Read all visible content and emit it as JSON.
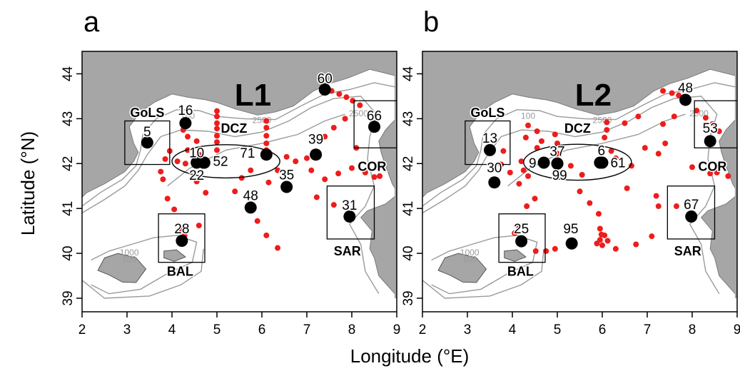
{
  "chart_data": {
    "type": "scatter",
    "xlabel": "Longitude (°E)",
    "ylabel": "Latitude (°N)",
    "xlim": [
      2,
      9
    ],
    "ylim": [
      39,
      44.5
    ],
    "xticks": [
      "2",
      "3",
      "4",
      "5",
      "6",
      "7",
      "8",
      "9"
    ],
    "yticks": [
      "39",
      "40",
      "41",
      "42",
      "43",
      "44"
    ],
    "contour_labels": [
      "100",
      "1000",
      "2500"
    ],
    "colors": {
      "land": "#a6a6a6",
      "sea": "#ffffff",
      "contour": "#9a9a9a",
      "coast": "#7a7a7a",
      "track": "#ee1c1c",
      "station": "#000000"
    },
    "panels": [
      {
        "letter": "a",
        "title": "L1",
        "regions": [
          {
            "label": "GoLS",
            "box": [
              2.95,
              41.98,
              3.95,
              42.95
            ],
            "lx": 3.45,
            "ly": 43.13
          },
          {
            "label": "COR",
            "box": [
              8.05,
              42.35,
              9.0,
              43.4
            ],
            "lx": 8.45,
            "ly": 41.93
          },
          {
            "label": "SAR",
            "box": [
              7.45,
              40.32,
              8.5,
              41.5
            ],
            "lx": 7.9,
            "ly": 40.05
          },
          {
            "label": "BAL",
            "box": [
              3.7,
              39.8,
              4.73,
              40.88
            ],
            "lx": 4.18,
            "ly": 39.6
          }
        ],
        "dcz": {
          "label": "DCZ",
          "cx": 5.2,
          "cy": 42.05,
          "rx": 1.2,
          "ry": 0.37,
          "lx": 5.38,
          "ly": 42.78
        },
        "stations": [
          {
            "id": "60",
            "lon": 7.4,
            "lat": 43.65,
            "tx": 7.4,
            "ty": 43.9
          },
          {
            "id": "66",
            "lon": 8.5,
            "lat": 42.82,
            "tx": 8.5,
            "ty": 43.08
          },
          {
            "id": "16",
            "lon": 4.3,
            "lat": 42.9,
            "tx": 4.3,
            "ty": 43.2
          },
          {
            "id": "5",
            "lon": 3.45,
            "lat": 42.47,
            "tx": 3.45,
            "ty": 42.72
          },
          {
            "id": "10",
            "lon": 4.55,
            "lat": 42.02,
            "tx": 4.55,
            "ty": 42.25
          },
          {
            "id": "22",
            "lon": 4.7,
            "lat": 42.02,
            "tx": 4.55,
            "ty": 41.75
          },
          {
            "id": "52",
            "lon": 4.72,
            "lat": 42.02,
            "tx": 5.08,
            "ty": 42.06
          },
          {
            "id": "71",
            "lon": 6.1,
            "lat": 42.2,
            "tx": 5.68,
            "ty": 42.24
          },
          {
            "id": "39",
            "lon": 7.2,
            "lat": 42.2,
            "tx": 7.2,
            "ty": 42.55
          },
          {
            "id": "35",
            "lon": 6.55,
            "lat": 41.48,
            "tx": 6.55,
            "ty": 41.76
          },
          {
            "id": "48",
            "lon": 5.75,
            "lat": 41.02,
            "tx": 5.75,
            "ty": 41.3
          },
          {
            "id": "31",
            "lon": 7.95,
            "lat": 40.82,
            "tx": 7.95,
            "ty": 41.08
          },
          {
            "id": "28",
            "lon": 4.22,
            "lat": 40.28,
            "tx": 4.22,
            "ty": 40.56
          }
        ],
        "track": [
          [
            7.55,
            43.62
          ],
          [
            7.72,
            43.55
          ],
          [
            7.88,
            43.48
          ],
          [
            8.02,
            43.4
          ],
          [
            8.18,
            43.3
          ],
          [
            7.85,
            43.0
          ],
          [
            7.6,
            42.8
          ],
          [
            7.4,
            42.6
          ],
          [
            8.0,
            41.9
          ],
          [
            7.7,
            41.78
          ],
          [
            7.4,
            41.65
          ],
          [
            7.1,
            41.85
          ],
          [
            6.75,
            42.05
          ],
          [
            6.55,
            42.15
          ],
          [
            6.35,
            41.85
          ],
          [
            6.15,
            41.58
          ],
          [
            6.1,
            42.95
          ],
          [
            6.1,
            42.8
          ],
          [
            6.1,
            42.62
          ],
          [
            6.1,
            42.45
          ],
          [
            6.1,
            42.3
          ],
          [
            5.55,
            41.68
          ],
          [
            5.75,
            41.85
          ],
          [
            5.4,
            41.38
          ],
          [
            5.9,
            40.72
          ],
          [
            6.1,
            40.4
          ],
          [
            6.35,
            40.12
          ],
          [
            5.0,
            43.17
          ],
          [
            5.0,
            43.05
          ],
          [
            5.0,
            42.9
          ],
          [
            5.0,
            42.78
          ],
          [
            5.0,
            42.62
          ],
          [
            5.0,
            42.48
          ],
          [
            5.0,
            42.3
          ],
          [
            4.75,
            41.35
          ],
          [
            4.55,
            41.6
          ],
          [
            4.3,
            42.0
          ],
          [
            4.12,
            42.05
          ],
          [
            4.35,
            42.3
          ],
          [
            4.55,
            42.5
          ],
          [
            4.35,
            42.6
          ],
          [
            4.25,
            42.75
          ],
          [
            4.6,
            42.2
          ],
          [
            3.95,
            42.28
          ],
          [
            3.85,
            42.1
          ],
          [
            3.75,
            41.82
          ],
          [
            3.8,
            41.65
          ],
          [
            3.9,
            41.22
          ],
          [
            4.05,
            40.98
          ],
          [
            4.2,
            40.55
          ],
          [
            4.6,
            40.62
          ],
          [
            4.28,
            40.4
          ],
          [
            8.5,
            41.7
          ],
          [
            8.62,
            41.72
          ],
          [
            8.3,
            41.8
          ],
          [
            8.1,
            42.35
          ],
          [
            7.22,
            41.25
          ],
          [
            7.6,
            41.08
          ],
          [
            7.0,
            42.12
          ]
        ]
      },
      {
        "letter": "b",
        "title": "L2",
        "regions": [
          {
            "label": "GoLS",
            "box": [
              2.95,
              41.98,
              3.95,
              42.95
            ],
            "lx": 3.45,
            "ly": 43.13
          },
          {
            "label": "COR",
            "box": [
              8.05,
              42.35,
              9.0,
              43.4
            ],
            "lx": 8.45,
            "ly": 41.93
          },
          {
            "label": "SAR",
            "box": [
              7.45,
              40.32,
              8.5,
              41.5
            ],
            "lx": 7.9,
            "ly": 40.05
          },
          {
            "label": "BAL",
            "box": [
              3.7,
              39.8,
              4.73,
              40.88
            ],
            "lx": 4.18,
            "ly": 39.6
          }
        ],
        "dcz": {
          "label": "DCZ",
          "cx": 5.45,
          "cy": 42.03,
          "rx": 1.2,
          "ry": 0.4,
          "lx": 5.45,
          "ly": 42.78
        },
        "stations": [
          {
            "id": "48",
            "lon": 7.85,
            "lat": 43.42,
            "tx": 7.85,
            "ty": 43.7
          },
          {
            "id": "53",
            "lon": 8.4,
            "lat": 42.5,
            "tx": 8.4,
            "ty": 42.8
          },
          {
            "id": "13",
            "lon": 3.5,
            "lat": 42.3,
            "tx": 3.5,
            "ty": 42.58
          },
          {
            "id": "30",
            "lon": 3.6,
            "lat": 41.58,
            "tx": 3.6,
            "ty": 41.92
          },
          {
            "id": "9",
            "lon": 4.7,
            "lat": 42.02,
            "tx": 4.45,
            "ty": 42.02
          },
          {
            "id": "37",
            "lon": 5.0,
            "lat": 42.0,
            "tx": 5.0,
            "ty": 42.28
          },
          {
            "id": "99",
            "lon": 5.0,
            "lat": 42.0,
            "tx": 5.05,
            "ty": 41.75
          },
          {
            "id": "6",
            "lon": 5.95,
            "lat": 42.02,
            "tx": 5.98,
            "ty": 42.3
          },
          {
            "id": "61",
            "lon": 6.0,
            "lat": 42.02,
            "tx": 6.35,
            "ty": 42.03
          },
          {
            "id": "95",
            "lon": 5.32,
            "lat": 40.22,
            "tx": 5.3,
            "ty": 40.56
          },
          {
            "id": "67",
            "lon": 7.98,
            "lat": 40.82,
            "tx": 7.98,
            "ty": 41.1
          },
          {
            "id": "25",
            "lon": 4.2,
            "lat": 40.27,
            "tx": 4.2,
            "ty": 40.56
          }
        ],
        "track": [
          [
            7.35,
            43.62
          ],
          [
            7.55,
            43.57
          ],
          [
            7.7,
            43.52
          ],
          [
            8.1,
            43.18
          ],
          [
            8.3,
            43.02
          ],
          [
            8.45,
            42.88
          ],
          [
            8.6,
            42.72
          ],
          [
            7.6,
            43.05
          ],
          [
            7.35,
            42.88
          ],
          [
            6.8,
            43.05
          ],
          [
            6.5,
            42.9
          ],
          [
            6.1,
            42.92
          ],
          [
            6.1,
            42.75
          ],
          [
            6.05,
            42.58
          ],
          [
            5.3,
            41.95
          ],
          [
            5.55,
            41.75
          ],
          [
            5.5,
            41.38
          ],
          [
            5.72,
            41.12
          ],
          [
            5.92,
            40.88
          ],
          [
            5.95,
            40.55
          ],
          [
            5.98,
            40.42
          ],
          [
            5.95,
            40.3
          ],
          [
            5.88,
            40.22
          ],
          [
            6.0,
            40.18
          ],
          [
            6.12,
            40.28
          ],
          [
            6.05,
            40.4
          ],
          [
            6.3,
            40.1
          ],
          [
            6.75,
            40.2
          ],
          [
            7.1,
            40.38
          ],
          [
            4.75,
            40.05
          ],
          [
            4.95,
            40.1
          ],
          [
            4.52,
            40.05
          ],
          [
            4.35,
            42.85
          ],
          [
            4.55,
            42.72
          ],
          [
            4.3,
            42.58
          ],
          [
            4.55,
            42.35
          ],
          [
            4.65,
            42.5
          ],
          [
            4.95,
            42.65
          ],
          [
            5.0,
            42.45
          ],
          [
            5.0,
            42.22
          ],
          [
            4.25,
            41.85
          ],
          [
            4.2,
            42.05
          ],
          [
            4.35,
            41.72
          ],
          [
            3.8,
            42.28
          ],
          [
            3.75,
            41.98
          ],
          [
            3.95,
            41.8
          ],
          [
            4.15,
            41.55
          ],
          [
            4.5,
            41.22
          ],
          [
            4.32,
            41.05
          ],
          [
            4.12,
            40.62
          ],
          [
            4.05,
            40.45
          ],
          [
            6.55,
            41.45
          ],
          [
            7.2,
            41.28
          ],
          [
            7.65,
            41.05
          ],
          [
            7.25,
            41.05
          ],
          [
            6.65,
            41.95
          ],
          [
            6.3,
            42.12
          ],
          [
            6.2,
            42.28
          ],
          [
            7.25,
            42.22
          ],
          [
            7.4,
            42.45
          ],
          [
            6.95,
            42.35
          ],
          [
            8.0,
            41.92
          ],
          [
            8.4,
            41.78
          ],
          [
            8.55,
            41.8
          ],
          [
            8.8,
            41.72
          ]
        ]
      }
    ]
  }
}
